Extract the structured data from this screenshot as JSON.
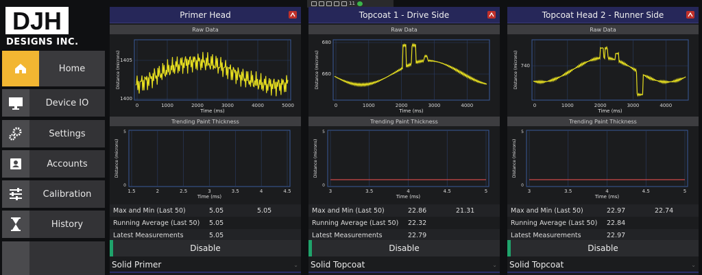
{
  "brand": {
    "logo_text": "DJH",
    "subtitle": "DESIGNS INC."
  },
  "nav": [
    {
      "label": "Home",
      "icon": "home-icon",
      "active": true
    },
    {
      "label": "Device IO",
      "icon": "monitor-icon"
    },
    {
      "label": "Settings",
      "icon": "gears-icon"
    },
    {
      "label": "Accounts",
      "icon": "user-card-icon"
    },
    {
      "label": "Calibration",
      "icon": "sliders-icon"
    },
    {
      "label": "History",
      "icon": "hourglass-icon"
    },
    {
      "label": "",
      "icon": ""
    }
  ],
  "tray": {
    "count": "11"
  },
  "colors": {
    "accent": "#f2b632",
    "panel_header": "#262759",
    "line": "#e8e020",
    "trend": "#d04a4a",
    "enabled": "#1fa36b"
  },
  "labels": {
    "raw": "Raw Data",
    "trend": "Trending Paint Thickness",
    "xlabel": "Time (ms)",
    "ylabel_raw": "Distance (microns)",
    "ylabel_trend": "Distance (microns)",
    "max_min": "Max and Min (Last 50)",
    "avg": "Running Average (Last 50)",
    "latest": "Latest Measurements",
    "disable": "Disable"
  },
  "panels": [
    {
      "title": "Primer Head",
      "max": "5.05",
      "min": "5.05",
      "avg": "5.05",
      "latest": "5.05",
      "material": "Solid Primer",
      "raw_ticks_x": [
        "0",
        "1000",
        "2000",
        "3000",
        "4000",
        "5000"
      ],
      "raw_ticks_y": [
        "1400",
        "1405"
      ],
      "trend_ticks_x": [
        "1.5",
        "2",
        "2.5",
        "3",
        "3.5",
        "4",
        "4.5"
      ],
      "trend_ticks_y": [
        "0",
        "5"
      ]
    },
    {
      "title": "Topcoat 1 - Drive Side",
      "max": "22.86",
      "min": "21.31",
      "avg": "22.32",
      "latest": "22.79",
      "material": "Solid Topcoat",
      "raw_ticks_x": [
        "0",
        "1000",
        "2000",
        "3000",
        "4000"
      ],
      "raw_ticks_y": [
        "680",
        "660"
      ],
      "trend_ticks_x": [
        "3",
        "3.5",
        "4",
        "4.5",
        "5"
      ],
      "trend_ticks_y": [
        "0",
        "5"
      ]
    },
    {
      "title": "Topcoat Head 2 - Runner Side",
      "max": "22.97",
      "min": "22.74",
      "avg": "22.84",
      "latest": "22.97",
      "material": "Solid Topcoat",
      "raw_ticks_x": [
        "0",
        "1000",
        "2000",
        "3000",
        "4000"
      ],
      "raw_ticks_y": [
        "740"
      ],
      "trend_ticks_x": [
        "3",
        "3.5",
        "4",
        "4.5",
        "5"
      ],
      "trend_ticks_y": [
        "0",
        "5"
      ]
    }
  ]
}
